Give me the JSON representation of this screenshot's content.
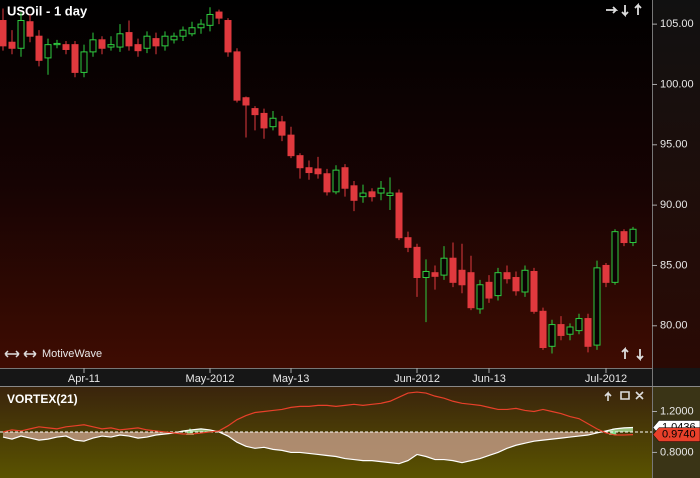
{
  "header": {
    "title": "USOil - 1 day",
    "brand": "MotiveWave"
  },
  "chart_data": [
    {
      "type": "candlestick",
      "categories": [
        null,
        null,
        null,
        null,
        null,
        null,
        null,
        null,
        null,
        "Apr-11",
        null,
        null,
        null,
        null,
        null,
        null,
        null,
        null,
        null,
        null,
        null,
        null,
        null,
        "May-2012",
        null,
        null,
        null,
        null,
        null,
        null,
        null,
        null,
        "May-13",
        null,
        null,
        null,
        null,
        null,
        null,
        null,
        null,
        null,
        null,
        null,
        null,
        null,
        "Jun-2012",
        null,
        null,
        null,
        null,
        null,
        null,
        null,
        "Jun-13",
        null,
        null,
        null,
        null,
        null,
        null,
        null,
        null,
        null,
        null,
        null,
        null,
        "Jul-2012",
        null,
        null,
        null
      ],
      "open": [
        105.3,
        103.5,
        103.0,
        105.2,
        104.0,
        102.2,
        103.3,
        103.3,
        103.3,
        101.0,
        102.7,
        103.7,
        103.1,
        103.1,
        104.3,
        103.3,
        103.0,
        103.8,
        103.2,
        103.7,
        104.0,
        104.2,
        104.7,
        104.9,
        106.0,
        105.3,
        102.7,
        98.9,
        98.0,
        97.6,
        96.5,
        96.9,
        95.8,
        94.1,
        93.1,
        93.0,
        92.6,
        91.1,
        93.1,
        91.6,
        90.7,
        91.1,
        91.0,
        90.8,
        91.0,
        87.3,
        86.5,
        84.0,
        84.4,
        84.2,
        85.6,
        84.6,
        84.4,
        81.4,
        83.6,
        82.5,
        84.4,
        84.0,
        82.8,
        84.5,
        81.2,
        78.3,
        80.1,
        79.3,
        79.6,
        80.6,
        78.4,
        85.0,
        83.6,
        87.8,
        86.9
      ],
      "high": [
        106.3,
        104.5,
        106.0,
        105.8,
        104.5,
        103.8,
        103.7,
        103.6,
        103.6,
        103.3,
        104.3,
        104.0,
        104.0,
        105.0,
        105.3,
        103.8,
        104.4,
        104.3,
        104.4,
        104.3,
        104.8,
        105.2,
        105.4,
        106.4,
        106.2,
        105.5,
        103.0,
        99.0,
        98.2,
        98.0,
        97.8,
        97.4,
        96.5,
        94.3,
        93.7,
        94.0,
        93.0,
        93.3,
        93.4,
        92.0,
        91.7,
        91.4,
        92.0,
        92.3,
        91.3,
        87.8,
        86.8,
        85.5,
        85.0,
        86.6,
        86.9,
        86.8,
        85.8,
        83.8,
        84.2,
        84.8,
        85.0,
        84.5,
        85.0,
        84.8,
        81.5,
        80.5,
        80.8,
        80.2,
        81.0,
        81.0,
        85.4,
        85.2,
        88.0,
        88.0,
        88.2
      ],
      "low": [
        102.8,
        102.5,
        102.3,
        103.5,
        101.5,
        100.8,
        103.0,
        102.5,
        100.6,
        100.6,
        102.3,
        102.5,
        102.8,
        102.7,
        102.8,
        102.3,
        102.6,
        102.5,
        102.8,
        103.4,
        103.6,
        104.0,
        104.2,
        104.4,
        105.0,
        102.3,
        98.5,
        95.6,
        96.2,
        95.5,
        96.2,
        95.3,
        93.9,
        92.2,
        92.1,
        92.2,
        90.8,
        90.9,
        90.7,
        89.5,
        90.2,
        90.3,
        90.4,
        89.6,
        87.1,
        86.1,
        82.4,
        80.3,
        83.0,
        83.8,
        83.2,
        82.7,
        81.3,
        81.0,
        81.9,
        82.1,
        83.5,
        82.5,
        82.4,
        81.0,
        78.0,
        77.7,
        78.8,
        78.8,
        79.3,
        77.8,
        78.0,
        83.2,
        83.4,
        86.6,
        86.6
      ],
      "close": [
        103.2,
        103.0,
        105.3,
        104.0,
        102.0,
        103.3,
        103.4,
        102.9,
        101.0,
        102.7,
        103.7,
        103.0,
        103.3,
        104.2,
        103.2,
        102.8,
        104.0,
        103.2,
        104.0,
        104.0,
        104.5,
        104.7,
        105.0,
        105.8,
        105.5,
        102.7,
        98.7,
        98.3,
        97.5,
        96.4,
        97.2,
        95.8,
        94.1,
        93.1,
        92.7,
        92.6,
        91.1,
        92.9,
        91.4,
        90.4,
        91.0,
        90.7,
        91.4,
        91.0,
        87.3,
        86.5,
        84.0,
        84.5,
        84.1,
        85.6,
        83.6,
        83.4,
        81.5,
        83.4,
        82.3,
        84.4,
        83.9,
        82.9,
        84.6,
        81.2,
        78.2,
        80.1,
        79.2,
        79.9,
        80.6,
        78.3,
        84.8,
        83.6,
        87.8,
        86.9,
        88.0
      ],
      "up_color": "#2ecc40",
      "down_color": "#e0393e",
      "ylim": [
        76.75,
        107.0
      ],
      "yticks": [
        {
          "value": 80,
          "label": "80.00"
        },
        {
          "value": 85,
          "label": "85.00"
        },
        {
          "value": 90,
          "label": "90.00"
        },
        {
          "value": 95,
          "label": "95.00"
        },
        {
          "value": 100,
          "label": "100.00"
        },
        {
          "value": 105,
          "label": "105.00"
        }
      ]
    },
    {
      "type": "line",
      "title": "VORTEX(21)",
      "series": [
        {
          "color": "#ffffff",
          "values": [
            0.95,
            0.93,
            0.96,
            0.94,
            0.92,
            0.93,
            0.95,
            0.96,
            0.92,
            0.91,
            0.94,
            0.96,
            0.95,
            0.97,
            0.96,
            0.94,
            0.95,
            0.97,
            0.98,
            0.99,
            1.01,
            1.02,
            1.03,
            1.02,
            1.0,
            0.96,
            0.9,
            0.86,
            0.84,
            0.85,
            0.83,
            0.82,
            0.8,
            0.8,
            0.79,
            0.78,
            0.77,
            0.76,
            0.74,
            0.73,
            0.72,
            0.72,
            0.71,
            0.7,
            0.69,
            0.72,
            0.78,
            0.76,
            0.73,
            0.73,
            0.72,
            0.7,
            0.72,
            0.74,
            0.77,
            0.8,
            0.84,
            0.87,
            0.89,
            0.91,
            0.92,
            0.93,
            0.94,
            0.95,
            0.96,
            0.97,
            0.99,
            1.01,
            1.03,
            1.04,
            1.0436
          ]
        },
        {
          "color": "#e8402a",
          "values": [
            1.0,
            1.02,
            1.01,
            1.03,
            1.05,
            1.04,
            1.03,
            1.05,
            1.06,
            1.07,
            1.05,
            1.03,
            1.04,
            1.02,
            1.03,
            1.04,
            1.02,
            1.01,
            1.0,
            0.99,
            0.98,
            0.98,
            0.99,
            1.0,
            1.01,
            1.06,
            1.12,
            1.16,
            1.19,
            1.2,
            1.21,
            1.22,
            1.24,
            1.25,
            1.25,
            1.26,
            1.26,
            1.25,
            1.26,
            1.27,
            1.26,
            1.27,
            1.28,
            1.3,
            1.34,
            1.38,
            1.39,
            1.38,
            1.35,
            1.33,
            1.3,
            1.28,
            1.27,
            1.26,
            1.24,
            1.22,
            1.22,
            1.23,
            1.21,
            1.2,
            1.22,
            1.2,
            1.18,
            1.15,
            1.13,
            1.08,
            1.03,
            0.99,
            0.97,
            0.97,
            0.974
          ],
          "value_labels": [
            null,
            null,
            null,
            null,
            null,
            null,
            null,
            null,
            null,
            null,
            null,
            null,
            null,
            null,
            null,
            null,
            null,
            null,
            null,
            null,
            null,
            null,
            null,
            null,
            null,
            null,
            null,
            null,
            null,
            null,
            null,
            null,
            null,
            null,
            null,
            null,
            null,
            null,
            null,
            null,
            null,
            null,
            null,
            null,
            null,
            null,
            null,
            null,
            null,
            null,
            null,
            null,
            null,
            null,
            null,
            null,
            null,
            null,
            null,
            null,
            null,
            null,
            null,
            null,
            null,
            null,
            null,
            null,
            null,
            null,
            "0.9740"
          ]
        }
      ],
      "ylim": [
        0.55,
        1.41
      ],
      "yticks": [
        {
          "value": 0.8,
          "label": "0.8000"
        },
        {
          "value": 1.2,
          "label": "1.2000"
        }
      ],
      "hline": 1.0
    }
  ]
}
